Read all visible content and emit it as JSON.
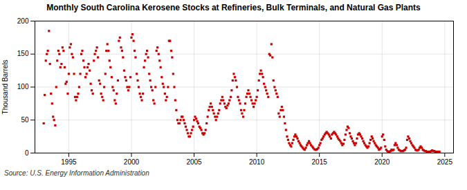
{
  "chart_data": {
    "type": "scatter",
    "title": "Monthly South Carolina Kerosene Stocks at Refineries, Bulk Terminals, and Natural Gas Plants",
    "ylabel": "Thousand Barrels",
    "source": "Source: U.S. Energy Information Administration",
    "color": "#CC0000",
    "marker": "square",
    "grid": true,
    "xlim": [
      1992.3,
      2025.7
    ],
    "xticks": [
      1995,
      2000,
      2005,
      2010,
      2015,
      2020,
      2025
    ],
    "ylim": [
      0,
      200
    ],
    "yticks": [
      0,
      50,
      100,
      150,
      200
    ],
    "x": [
      1993.0,
      1993.08,
      1993.17,
      1993.25,
      1993.33,
      1993.42,
      1993.5,
      1993.58,
      1993.67,
      1993.75,
      1993.83,
      1993.92,
      1994.0,
      1994.08,
      1994.17,
      1994.25,
      1994.33,
      1994.42,
      1994.5,
      1994.58,
      1994.67,
      1994.75,
      1994.83,
      1994.92,
      1995.0,
      1995.08,
      1995.17,
      1995.25,
      1995.33,
      1995.42,
      1995.5,
      1995.58,
      1995.67,
      1995.75,
      1995.83,
      1995.92,
      1996.0,
      1996.08,
      1996.17,
      1996.25,
      1996.33,
      1996.42,
      1996.5,
      1996.58,
      1996.67,
      1996.75,
      1996.83,
      1996.92,
      1997.0,
      1997.08,
      1997.17,
      1997.25,
      1997.33,
      1997.42,
      1997.5,
      1997.58,
      1997.67,
      1997.75,
      1997.83,
      1997.92,
      1998.0,
      1998.08,
      1998.17,
      1998.25,
      1998.33,
      1998.42,
      1998.5,
      1998.58,
      1998.67,
      1998.75,
      1998.83,
      1998.92,
      1999.0,
      1999.08,
      1999.17,
      1999.25,
      1999.33,
      1999.42,
      1999.5,
      1999.58,
      1999.67,
      1999.75,
      1999.83,
      1999.92,
      2000.0,
      2000.08,
      2000.17,
      2000.25,
      2000.33,
      2000.42,
      2000.5,
      2000.58,
      2000.67,
      2000.75,
      2000.83,
      2000.92,
      2001.0,
      2001.08,
      2001.17,
      2001.25,
      2001.33,
      2001.42,
      2001.5,
      2001.58,
      2001.67,
      2001.75,
      2001.83,
      2001.92,
      2002.0,
      2002.08,
      2002.17,
      2002.25,
      2002.33,
      2002.42,
      2002.5,
      2002.58,
      2002.67,
      2002.75,
      2002.83,
      2002.92,
      2003.0,
      2003.08,
      2003.17,
      2003.25,
      2003.33,
      2003.42,
      2003.5,
      2003.58,
      2003.67,
      2003.75,
      2003.83,
      2003.92,
      2004.0,
      2004.08,
      2004.17,
      2004.25,
      2004.33,
      2004.42,
      2004.5,
      2004.58,
      2004.67,
      2004.75,
      2004.83,
      2004.92,
      2005.0,
      2005.08,
      2005.17,
      2005.25,
      2005.33,
      2005.42,
      2005.5,
      2005.58,
      2005.67,
      2005.75,
      2005.83,
      2005.92,
      2006.0,
      2006.08,
      2006.17,
      2006.25,
      2006.33,
      2006.42,
      2006.5,
      2006.58,
      2006.67,
      2006.75,
      2006.83,
      2006.92,
      2007.0,
      2007.08,
      2007.17,
      2007.25,
      2007.33,
      2007.42,
      2007.5,
      2007.58,
      2007.67,
      2007.75,
      2007.83,
      2007.92,
      2008.0,
      2008.08,
      2008.17,
      2008.25,
      2008.33,
      2008.42,
      2008.5,
      2008.58,
      2008.67,
      2008.75,
      2008.83,
      2008.92,
      2009.0,
      2009.08,
      2009.17,
      2009.25,
      2009.33,
      2009.42,
      2009.5,
      2009.58,
      2009.67,
      2009.75,
      2009.83,
      2009.92,
      2010.0,
      2010.08,
      2010.17,
      2010.25,
      2010.33,
      2010.42,
      2010.5,
      2010.58,
      2010.67,
      2010.75,
      2010.83,
      2010.92,
      2011.0,
      2011.08,
      2011.17,
      2011.25,
      2011.33,
      2011.42,
      2011.5,
      2011.58,
      2011.67,
      2011.75,
      2011.83,
      2011.92,
      2012.0,
      2012.08,
      2012.17,
      2012.25,
      2012.33,
      2012.42,
      2012.5,
      2012.58,
      2012.67,
      2012.75,
      2012.83,
      2012.92,
      2013.0,
      2013.08,
      2013.17,
      2013.25,
      2013.33,
      2013.42,
      2013.5,
      2013.58,
      2013.67,
      2013.75,
      2013.83,
      2013.92,
      2014.0,
      2014.08,
      2014.17,
      2014.25,
      2014.33,
      2014.42,
      2014.5,
      2014.58,
      2014.67,
      2014.75,
      2014.83,
      2014.92,
      2015.0,
      2015.08,
      2015.17,
      2015.25,
      2015.33,
      2015.42,
      2015.5,
      2015.58,
      2015.67,
      2015.75,
      2015.83,
      2015.92,
      2016.0,
      2016.08,
      2016.17,
      2016.25,
      2016.33,
      2016.42,
      2016.5,
      2016.58,
      2016.67,
      2016.75,
      2016.83,
      2016.92,
      2017.0,
      2017.08,
      2017.17,
      2017.25,
      2017.33,
      2017.42,
      2017.5,
      2017.58,
      2017.67,
      2017.75,
      2017.83,
      2017.92,
      2018.0,
      2018.08,
      2018.17,
      2018.25,
      2018.33,
      2018.42,
      2018.5,
      2018.58,
      2018.67,
      2018.75,
      2018.83,
      2018.92,
      2019.0,
      2019.08,
      2019.17,
      2019.25,
      2019.33,
      2019.42,
      2019.5,
      2019.58,
      2019.67,
      2019.75,
      2019.83,
      2019.92,
      2020.0,
      2020.08,
      2020.17,
      2020.25,
      2020.33,
      2020.42,
      2020.5,
      2020.58,
      2020.67,
      2020.75,
      2020.83,
      2020.92,
      2021.0,
      2021.08,
      2021.17,
      2021.25,
      2021.33,
      2021.42,
      2021.5,
      2021.58,
      2021.67,
      2021.75,
      2021.83,
      2021.92,
      2022.0,
      2022.08,
      2022.17,
      2022.25,
      2022.33,
      2022.42,
      2022.5,
      2022.58,
      2022.67,
      2022.75,
      2022.83,
      2022.92,
      2023.0,
      2023.08,
      2023.17,
      2023.25,
      2023.33,
      2023.42,
      2023.5,
      2023.58,
      2023.67,
      2023.75,
      2023.83,
      2023.92,
      2024.0,
      2024.08,
      2024.17,
      2024.25,
      2024.33,
      2024.42,
      2024.5,
      2024.58
    ],
    "values": [
      45,
      88,
      140,
      150,
      155,
      185,
      135,
      90,
      75,
      55,
      50,
      42,
      100,
      140,
      155,
      150,
      130,
      135,
      160,
      155,
      130,
      105,
      108,
      90,
      120,
      160,
      165,
      150,
      145,
      120,
      85,
      80,
      85,
      90,
      100,
      120,
      150,
      155,
      140,
      130,
      115,
      120,
      130,
      135,
      125,
      105,
      95,
      90,
      140,
      150,
      155,
      160,
      145,
      110,
      105,
      90,
      85,
      80,
      100,
      120,
      155,
      165,
      155,
      140,
      130,
      115,
      100,
      95,
      80,
      75,
      90,
      110,
      170,
      175,
      160,
      155,
      145,
      125,
      115,
      110,
      100,
      95,
      100,
      115,
      175,
      180,
      170,
      155,
      145,
      120,
      110,
      100,
      90,
      85,
      80,
      90,
      130,
      140,
      150,
      155,
      145,
      120,
      110,
      100,
      95,
      80,
      75,
      100,
      155,
      160,
      150,
      140,
      130,
      115,
      105,
      100,
      90,
      80,
      85,
      100,
      170,
      170,
      155,
      145,
      120,
      100,
      80,
      65,
      50,
      45,
      45,
      50,
      55,
      55,
      50,
      45,
      40,
      35,
      30,
      25,
      25,
      30,
      35,
      40,
      50,
      55,
      52,
      48,
      45,
      40,
      38,
      35,
      30,
      28,
      30,
      35,
      45,
      55,
      65,
      70,
      75,
      70,
      65,
      60,
      55,
      50,
      55,
      60,
      65,
      75,
      80,
      85,
      80,
      75,
      70,
      68,
      72,
      75,
      80,
      85,
      95,
      110,
      120,
      115,
      110,
      100,
      85,
      80,
      75,
      65,
      60,
      55,
      65,
      75,
      85,
      90,
      95,
      90,
      85,
      80,
      75,
      70,
      75,
      80,
      85,
      95,
      110,
      120,
      125,
      120,
      115,
      105,
      100,
      95,
      90,
      85,
      150,
      148,
      165,
      145,
      110,
      100,
      95,
      90,
      85,
      60,
      55,
      65,
      70,
      65,
      55,
      45,
      35,
      25,
      20,
      15,
      12,
      10,
      15,
      20,
      25,
      28,
      25,
      22,
      18,
      15,
      12,
      10,
      8,
      6,
      5,
      8,
      12,
      15,
      18,
      15,
      12,
      10,
      8,
      6,
      5,
      5,
      6,
      8,
      12,
      15,
      20,
      22,
      25,
      28,
      30,
      32,
      30,
      28,
      25,
      22,
      28,
      30,
      32,
      30,
      28,
      25,
      22,
      20,
      18,
      15,
      12,
      14,
      20,
      28,
      35,
      40,
      38,
      30,
      25,
      22,
      18,
      15,
      12,
      15,
      22,
      28,
      30,
      28,
      25,
      22,
      18,
      15,
      12,
      10,
      8,
      10,
      15,
      20,
      25,
      22,
      18,
      15,
      12,
      10,
      8,
      5,
      6,
      8,
      25,
      28,
      20,
      10,
      5,
      3,
      2,
      2,
      3,
      5,
      4,
      5,
      12,
      15,
      12,
      8,
      5,
      4,
      3,
      3,
      3,
      4,
      5,
      8,
      20,
      25,
      22,
      18,
      15,
      12,
      10,
      8,
      5,
      4,
      4,
      5,
      8,
      10,
      8,
      5,
      4,
      3,
      3,
      2,
      2,
      2,
      2,
      3,
      4,
      3,
      3,
      2,
      2,
      2,
      2,
      2
    ]
  }
}
